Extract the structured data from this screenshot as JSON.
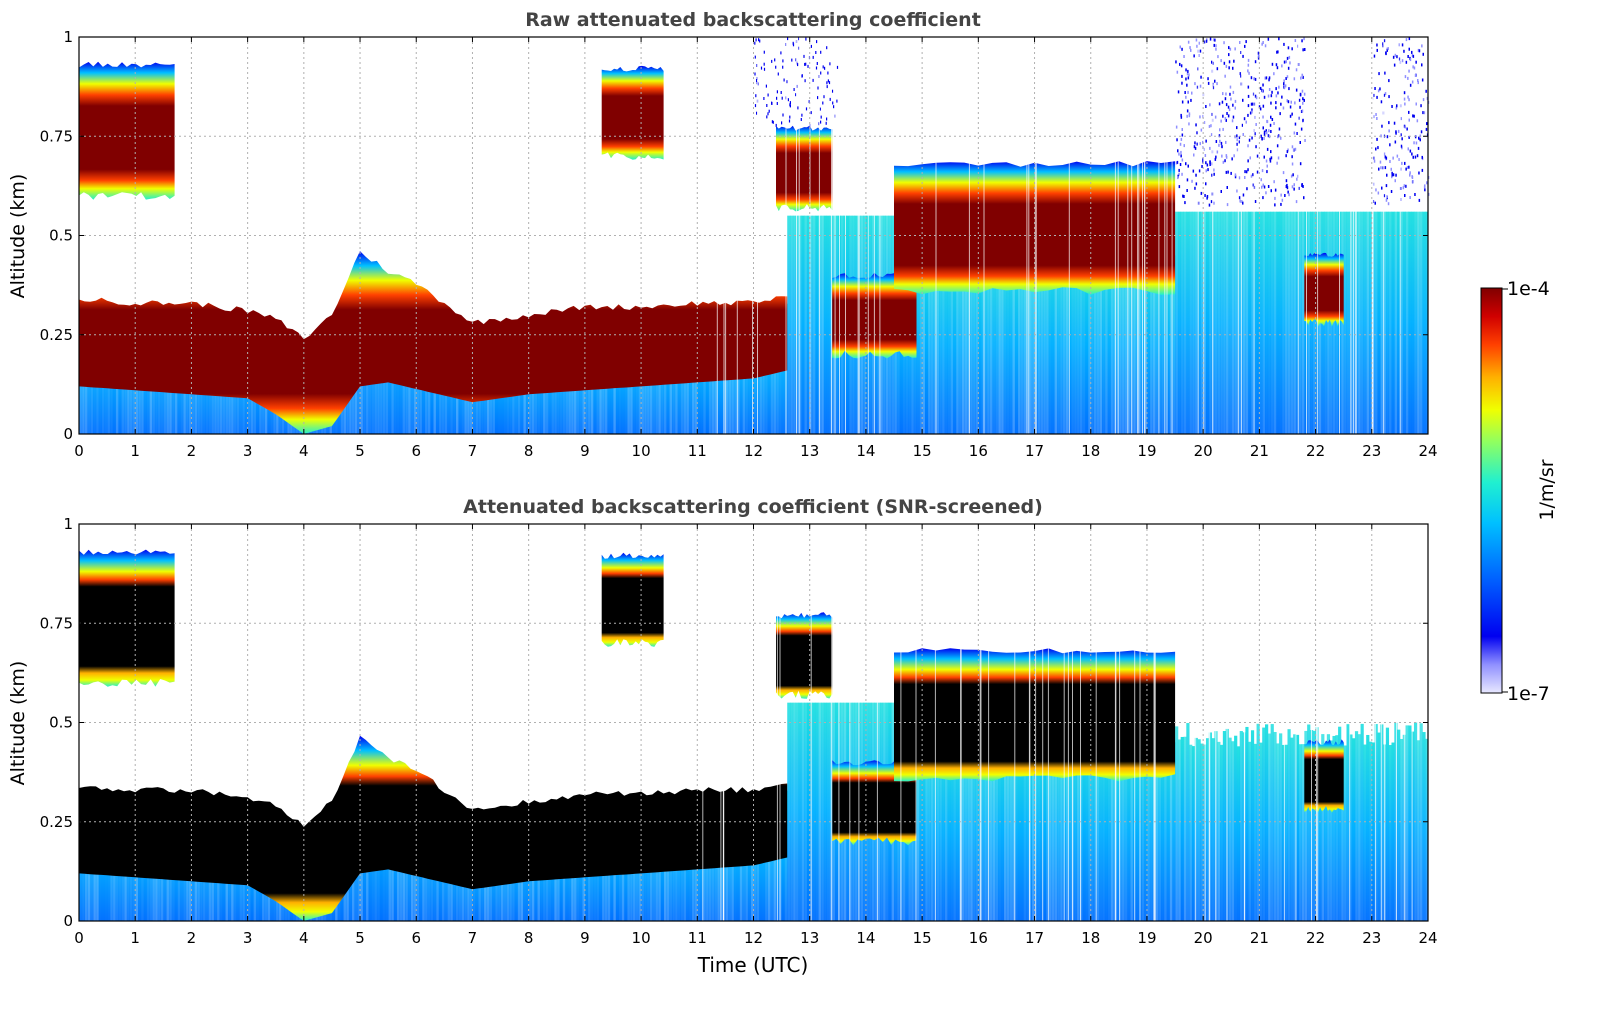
{
  "chart_data": [
    {
      "type": "heatmap",
      "title": "Raw attenuated backscattering coefficient",
      "xlabel": "",
      "ylabel": "Altitude (km)",
      "xlim": [
        0,
        24
      ],
      "ylim": [
        0,
        1
      ],
      "xticks": [
        "0",
        "1",
        "2",
        "3",
        "4",
        "5",
        "6",
        "7",
        "8",
        "9",
        "10",
        "11",
        "12",
        "13",
        "14",
        "15",
        "16",
        "17",
        "18",
        "19",
        "20",
        "21",
        "22",
        "23",
        "24"
      ],
      "yticks": [
        "0",
        "0.25",
        "0.5",
        "0.75",
        "1"
      ],
      "grid": true,
      "screened": false
    },
    {
      "type": "heatmap",
      "title": "Attenuated backscattering coefficient (SNR-screened)",
      "xlabel": "Time (UTC)",
      "ylabel": "Altitude (km)",
      "xlim": [
        0,
        24
      ],
      "ylim": [
        0,
        1
      ],
      "xticks": [
        "0",
        "1",
        "2",
        "3",
        "4",
        "5",
        "6",
        "7",
        "8",
        "9",
        "10",
        "11",
        "12",
        "13",
        "14",
        "15",
        "16",
        "17",
        "18",
        "19",
        "20",
        "21",
        "22",
        "23",
        "24"
      ],
      "yticks": [
        "0",
        "0.25",
        "0.5",
        "0.75",
        "1"
      ],
      "grid": true,
      "screened": true
    }
  ],
  "colorbar": {
    "max_label": "1e-4",
    "min_label": "1e-7",
    "unit": "1/m/sr",
    "scale": "log"
  },
  "features": {
    "pbl_top_km": [
      [
        0,
        0.34
      ],
      [
        1,
        0.33
      ],
      [
        2,
        0.33
      ],
      [
        3,
        0.31
      ],
      [
        3.5,
        0.29
      ],
      [
        4,
        0.24
      ],
      [
        4.5,
        0.3
      ],
      [
        5,
        0.46
      ],
      [
        5.5,
        0.41
      ],
      [
        6,
        0.38
      ],
      [
        7,
        0.28
      ],
      [
        8,
        0.3
      ],
      [
        9,
        0.32
      ],
      [
        10,
        0.32
      ],
      [
        11,
        0.33
      ],
      [
        12,
        0.33
      ],
      [
        12.6,
        0.35
      ]
    ],
    "pbl_base_km": [
      [
        0,
        0.12
      ],
      [
        2,
        0.1
      ],
      [
        3,
        0.09
      ],
      [
        3.5,
        0.05
      ],
      [
        4,
        0.0
      ],
      [
        4.5,
        0.02
      ],
      [
        5,
        0.12
      ],
      [
        5.5,
        0.13
      ],
      [
        7,
        0.08
      ],
      [
        8,
        0.1
      ],
      [
        9,
        0.11
      ],
      [
        10,
        0.12
      ],
      [
        11,
        0.13
      ],
      [
        12,
        0.14
      ],
      [
        12.6,
        0.16
      ]
    ],
    "cloud_layers": [
      {
        "t0": 0.0,
        "t1": 1.7,
        "top": 0.93,
        "base": 0.6
      },
      {
        "t0": 12.4,
        "t1": 13.4,
        "top": 0.77,
        "base": 0.57
      },
      {
        "t0": 13.4,
        "t1": 14.9,
        "top": 0.4,
        "base": 0.2
      },
      {
        "t0": 14.5,
        "t1": 19.5,
        "top": 0.68,
        "base": 0.36
      },
      {
        "t0": 21.8,
        "t1": 22.5,
        "top": 0.45,
        "base": 0.28
      },
      {
        "t0": 9.3,
        "t1": 10.4,
        "top": 0.92,
        "base": 0.7
      }
    ],
    "noise_onset_time": 19.5,
    "noise_floor_km": 0.58
  },
  "colors": {
    "palette": [
      "#e8e8ff",
      "#c4c4ff",
      "#9090ff",
      "#0000f0",
      "#0040ff",
      "#0090ff",
      "#00d0ff",
      "#20f0d0",
      "#90ff60",
      "#f0ff00",
      "#ffb000",
      "#ff4000",
      "#d00000",
      "#800000"
    ],
    "screened_saturation": "#000000",
    "title_color": "#444444"
  }
}
